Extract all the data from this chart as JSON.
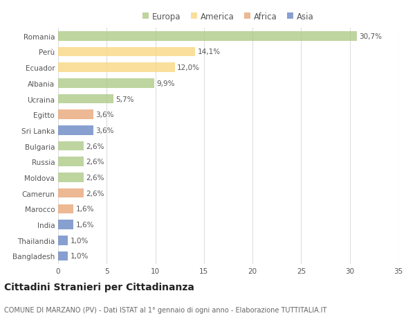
{
  "countries": [
    "Romania",
    "Perù",
    "Ecuador",
    "Albania",
    "Ucraina",
    "Egitto",
    "Sri Lanka",
    "Bulgaria",
    "Russia",
    "Moldova",
    "Camerun",
    "Marocco",
    "India",
    "Thailandia",
    "Bangladesh"
  ],
  "values": [
    30.7,
    14.1,
    12.0,
    9.9,
    5.7,
    3.6,
    3.6,
    2.6,
    2.6,
    2.6,
    2.6,
    1.6,
    1.6,
    1.0,
    1.0
  ],
  "labels": [
    "30,7%",
    "14,1%",
    "12,0%",
    "9,9%",
    "5,7%",
    "3,6%",
    "3,6%",
    "2,6%",
    "2,6%",
    "2,6%",
    "2,6%",
    "1,6%",
    "1,6%",
    "1,0%",
    "1,0%"
  ],
  "continents": [
    "Europa",
    "America",
    "America",
    "Europa",
    "Europa",
    "Africa",
    "Asia",
    "Europa",
    "Europa",
    "Europa",
    "Africa",
    "Africa",
    "Asia",
    "Asia",
    "Asia"
  ],
  "continent_colors": {
    "Europa": "#a8c880",
    "America": "#f7d57a",
    "Africa": "#e8a070",
    "Asia": "#6080c0"
  },
  "legend_order": [
    "Europa",
    "America",
    "Africa",
    "Asia"
  ],
  "title": "Cittadini Stranieri per Cittadinanza",
  "subtitle": "COMUNE DI MARZANO (PV) - Dati ISTAT al 1° gennaio di ogni anno - Elaborazione TUTTITALIA.IT",
  "xlim": [
    0,
    35
  ],
  "xticks": [
    0,
    5,
    10,
    15,
    20,
    25,
    30,
    35
  ],
  "bg_color": "#ffffff",
  "plot_bg_color": "#ffffff",
  "grid_color": "#dddddd",
  "bar_height": 0.6,
  "label_fontsize": 7.5,
  "tick_fontsize": 7.5,
  "title_fontsize": 10,
  "subtitle_fontsize": 7,
  "legend_fontsize": 8.5
}
